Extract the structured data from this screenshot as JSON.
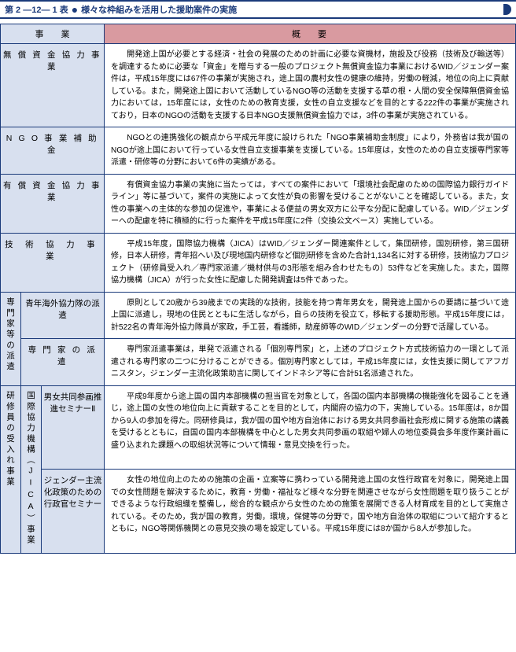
{
  "title": {
    "label": "第 2 ―12― 1 表",
    "text": "様々な枠組みを活用した援助案件の実施"
  },
  "header": {
    "left": "事　　業",
    "right": "概要"
  },
  "rows": [
    {
      "label": "無 償 資 金 協 力 事 業",
      "content": "　開発途上国が必要とする経済・社会の発展のための計画に必要な資機材，施設及び役務（技術及び輸送等）を調達するために必要な「資金」を贈与する一般のプロジェクト無償資金協力事業におけるWID／ジェンダー案件は，平成15年度には67件の事業が実施され，途上国の農村女性の健康の維持，労働の軽減，地位の向上に貢献している。また，開発途上国において活動しているNGO等の活動を支援する草の根・人間の安全保障無償資金協力においては，15年度には，女性のための教育支援，女性の自立支援などを目的とする222件の事業が実施されており，日本のNGOの活動を支援する日本NGO支援無償資金協力では，3件の事業が実施されている。"
    },
    {
      "label": "N G O 事 業 補 助 金",
      "content": "　NGOとの連携強化の観点から平成元年度に設けられた「NGO事業補助金制度」により，外務省は我が国のNGOが途上国において行っている女性自立支援事業を支援している。15年度は，女性のための自立支援専門家等派遣・研修等の分野において6件の実績がある。"
    },
    {
      "label": "有 償 資 金 協 力 事 業",
      "content": "　有償資金協力事業の実施に当たっては，すべての案件において「環境社会配慮のための国際協力銀行ガイドライン」等に基づいて，案件の実施によって女性が負の影響を受けることがないことを確認している。また，女性の事業への主体的な参加の促進や，事業による便益の男女双方に公平な分配に配慮している。WID／ジェンダーへの配慮を特に積極的に行った案件を平成15年度に2件（交換公文ベース）実施している。"
    },
    {
      "label": "技 術 協 力 事 業",
      "content": "　平成15年度，国際協力機構（JICA）はWID／ジェンダー関連案件として，集団研修，国別研修，第三国研修，日本人研修，青年招へい及び現地国内研修など個別研修を含めた合計1,134名に対する研修，技術協力プロジェクト（研修員受入れ／専門家派遣／機材供与の3形態を組み合わせたもの）53件などを実施した。また，国際協力機構（JICA）が行った女性に配慮した開発調査は5件であった。"
    }
  ],
  "senmon": {
    "group": "専門家等の派遣",
    "sub": [
      {
        "label": "青年海外協力隊の派遣",
        "content": "　原則として20歳から39歳までの実践的な技術，技能を持つ青年男女を，開発途上国からの要請に基づいて途上国に派遣し，現地の住民とともに生活しながら，自らの技術を役立て，移転する援助形態。平成15年度には，計522名の青年海外協力隊員が家政，手工芸，看護師，助産師等のWID／ジェンダーの分野で活躍している。"
      },
      {
        "label": "専 門 家 の 派 遣",
        "content": "　専門家派遣事業は，単発で派遣される「個別専門家」と，上述のプロジェクト方式技術協力の一環として派遣される専門家の二つに分けることができる。個別専門家としては，平成15年度には，女性支援に関してアフガニスタン，ジェンダー主流化政策助言に関してインドネシア等に合計51名派遣された。"
      }
    ]
  },
  "kenshu": {
    "group": "研修員の受入れ事業",
    "subgroup": "国際協力機構（JICA）事業",
    "sub": [
      {
        "label": "男女共同参画推進セミナーⅡ",
        "content": "　平成9年度から途上国の国内本部機構の担当官を対象として，各国の国内本部機構の機能強化を図ることを通じ，途上国の女性の地位向上に貢献することを目的として，内閣府の協力の下，実施している。15年度は，8か国から9人の参加を得た。同研修員は，我が国の国や地方自治体における男女共同参画社会形成に関する施策の講義を受けるとともに，自国の国内本部機構を中心とした男女共同参画の取組や婦人の地位委員会多年度作業計画に盛り込まれた課題への取組状況等について情報・意見交換を行った。"
      },
      {
        "label": "ジェンダー主流化政策のための行政官セミナー",
        "content": "　女性の地位向上のための施策の企画・立案等に携わっている開発途上国の女性行政官を対象に，開発途上国での女性問題を解決するために，教育・労働・福祉など様々な分野を関連させながら女性問題を取り扱うことができるような行政組織を整備し，総合的な観点から女性のための施策を展開できる人材育成を目的として実施されている。そのため，我が国の教育，労働，環境，保健等の分野で，国や地方自治体の取組について紹介するとともに，NGO等関係機関との意見交換の場を設定している。平成15年度には8か国から8人が参加した。"
      }
    ]
  }
}
